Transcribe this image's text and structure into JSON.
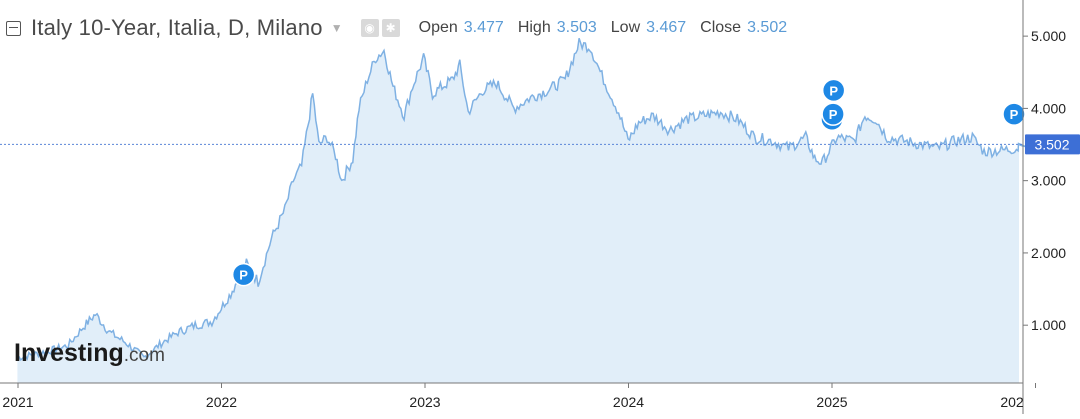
{
  "header": {
    "title": "Italy 10-Year, Italia, D, Milano",
    "ohlc": [
      {
        "label": "Open",
        "value": "3.477"
      },
      {
        "label": "High",
        "value": "3.503"
      },
      {
        "label": "Low",
        "value": "3.467"
      },
      {
        "label": "Close",
        "value": "3.502"
      }
    ]
  },
  "watermark": {
    "brand": "Investing",
    "suffix": ".com"
  },
  "colors": {
    "line": "#7fb1e3",
    "fill": "#e1eef9",
    "accent": "#1e88e5",
    "last_price_label_bg": "#3d6fd6",
    "price_line": "#5a85d8"
  },
  "chart_data": {
    "type": "area",
    "x_tick_labels": [
      "2021",
      "2022",
      "2023",
      "2024",
      "2025",
      "202"
    ],
    "y_tick_labels": [
      "1.000",
      "2.000",
      "3.000",
      "4.000",
      "5.000"
    ],
    "ylim": [
      0.2,
      5.5
    ],
    "last_price": 3.502,
    "last_price_label": "3.502",
    "markers": [
      {
        "label": "P",
        "date": "2022-02-10",
        "value": 1.7
      },
      {
        "label": "P",
        "date": "2025-01-01",
        "value": 3.85
      },
      {
        "label": "P",
        "date": "2025-01-03",
        "value": 3.92
      },
      {
        "label": "P",
        "date": "2025-01-04",
        "value": 4.25
      },
      {
        "label": "P",
        "date": "2026-01-01",
        "value": 3.92
      }
    ],
    "series": [
      {
        "points": [
          [
            "2020-12-31",
            0.55
          ],
          [
            "2021-02-01",
            0.6
          ],
          [
            "2021-03-01",
            0.65
          ],
          [
            "2021-04-01",
            0.72
          ],
          [
            "2021-05-01",
            1.0
          ],
          [
            "2021-05-20",
            1.15
          ],
          [
            "2021-06-15",
            0.9
          ],
          [
            "2021-07-15",
            0.75
          ],
          [
            "2021-08-15",
            0.55
          ],
          [
            "2021-09-15",
            0.75
          ],
          [
            "2021-10-15",
            0.9
          ],
          [
            "2021-11-15",
            1.0
          ],
          [
            "2021-12-15",
            1.05
          ],
          [
            "2022-01-15",
            1.4
          ],
          [
            "2022-02-15",
            1.85
          ],
          [
            "2022-03-08",
            1.6
          ],
          [
            "2022-04-01",
            2.2
          ],
          [
            "2022-04-25",
            2.6
          ],
          [
            "2022-05-10",
            3.0
          ],
          [
            "2022-05-25",
            3.2
          ],
          [
            "2022-06-14",
            4.2
          ],
          [
            "2022-06-25",
            3.5
          ],
          [
            "2022-07-10",
            3.6
          ],
          [
            "2022-07-25",
            3.35
          ],
          [
            "2022-08-05",
            3.0
          ],
          [
            "2022-08-25",
            3.3
          ],
          [
            "2022-09-05",
            4.0
          ],
          [
            "2022-09-20",
            4.4
          ],
          [
            "2022-10-05",
            4.7
          ],
          [
            "2022-10-20",
            4.8
          ],
          [
            "2022-11-05",
            4.3
          ],
          [
            "2022-11-25",
            3.9
          ],
          [
            "2022-12-10",
            4.3
          ],
          [
            "2022-12-30",
            4.7
          ],
          [
            "2023-01-15",
            4.2
          ],
          [
            "2023-02-01",
            4.3
          ],
          [
            "2023-02-20",
            4.4
          ],
          [
            "2023-03-05",
            4.6
          ],
          [
            "2023-03-20",
            3.95
          ],
          [
            "2023-04-15",
            4.25
          ],
          [
            "2023-05-10",
            4.35
          ],
          [
            "2023-06-10",
            4.0
          ],
          [
            "2023-07-10",
            4.15
          ],
          [
            "2023-08-10",
            4.25
          ],
          [
            "2023-09-10",
            4.4
          ],
          [
            "2023-10-05",
            4.9
          ],
          [
            "2023-10-25",
            4.85
          ],
          [
            "2023-11-15",
            4.45
          ],
          [
            "2023-12-15",
            3.95
          ],
          [
            "2024-01-01",
            3.55
          ],
          [
            "2024-01-20",
            3.8
          ],
          [
            "2024-02-15",
            3.9
          ],
          [
            "2024-03-15",
            3.7
          ],
          [
            "2024-04-15",
            3.85
          ],
          [
            "2024-05-15",
            3.9
          ],
          [
            "2024-06-15",
            3.95
          ],
          [
            "2024-07-15",
            3.85
          ],
          [
            "2024-08-15",
            3.6
          ],
          [
            "2024-09-15",
            3.55
          ],
          [
            "2024-10-15",
            3.45
          ],
          [
            "2024-11-15",
            3.6
          ],
          [
            "2024-12-01",
            3.3
          ],
          [
            "2024-12-15",
            3.25
          ],
          [
            "2025-01-10",
            3.6
          ],
          [
            "2025-02-10",
            3.55
          ],
          [
            "2025-03-01",
            3.9
          ],
          [
            "2025-03-20",
            3.85
          ],
          [
            "2025-04-10",
            3.6
          ],
          [
            "2025-05-10",
            3.55
          ],
          [
            "2025-06-10",
            3.5
          ],
          [
            "2025-07-10",
            3.45
          ],
          [
            "2025-08-10",
            3.55
          ],
          [
            "2025-09-10",
            3.6
          ],
          [
            "2025-10-01",
            3.4
          ],
          [
            "2025-11-01",
            3.42
          ],
          [
            "2025-12-01",
            3.45
          ],
          [
            "2025-12-15",
            3.55
          ],
          [
            "2026-01-01",
            3.5
          ]
        ]
      }
    ]
  }
}
